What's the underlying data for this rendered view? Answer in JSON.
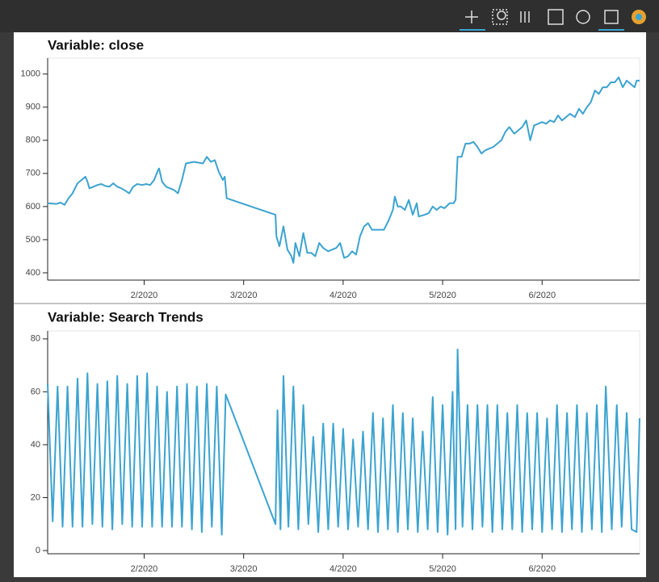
{
  "chart_data": [
    {
      "type": "line",
      "title": "Variable: close",
      "x": [
        1.03,
        1.12,
        1.16,
        1.2,
        1.24,
        1.28,
        1.33,
        1.37,
        1.41,
        1.43,
        1.45,
        1.49,
        1.53,
        1.57,
        1.61,
        1.65,
        1.69,
        1.73,
        1.77,
        1.81,
        1.85,
        1.89,
        1.93,
        1.98,
        2.02,
        2.06,
        2.1,
        2.14,
        2.15,
        2.18,
        2.22,
        2.26,
        2.3,
        2.34,
        2.36,
        2.38,
        2.42,
        2.5,
        2.59,
        2.63,
        2.67,
        2.71,
        2.75,
        2.79,
        2.81,
        2.83,
        3.32,
        3.33,
        3.36,
        3.4,
        3.44,
        3.48,
        3.5,
        3.52,
        3.56,
        3.6,
        3.64,
        3.68,
        3.72,
        3.76,
        3.8,
        3.85,
        3.89,
        3.93,
        3.97,
        4.01,
        4.05,
        4.09,
        4.13,
        4.17,
        4.21,
        4.25,
        4.29,
        4.33,
        4.37,
        4.41,
        4.46,
        4.5,
        4.52,
        4.55,
        4.58,
        4.62,
        4.66,
        4.7,
        4.74,
        4.76,
        4.82,
        4.86,
        4.9,
        4.94,
        4.98,
        5.02,
        5.07,
        5.11,
        5.13,
        5.15,
        5.19,
        5.23,
        5.27,
        5.31,
        5.35,
        5.39,
        5.43,
        5.47,
        5.51,
        5.55,
        5.59,
        5.63,
        5.67,
        5.72,
        5.76,
        5.8,
        5.84,
        5.88,
        5.92,
        5.96,
        6.0,
        6.04,
        6.08,
        6.12,
        6.16,
        6.2,
        6.24,
        6.28,
        6.33,
        6.37,
        6.41,
        6.45,
        6.49,
        6.53,
        6.57,
        6.61,
        6.65,
        6.69,
        6.73,
        6.77,
        6.81,
        6.85,
        6.89,
        6.93,
        6.95,
        6.98
      ],
      "series": [
        {
          "color": "#3ba3d0",
          "values": [
            610,
            608,
            612,
            605,
            625,
            640,
            670,
            680,
            690,
            675,
            655,
            660,
            665,
            668,
            662,
            660,
            670,
            660,
            655,
            648,
            640,
            660,
            668,
            665,
            668,
            665,
            680,
            710,
            715,
            675,
            660,
            655,
            650,
            640,
            660,
            680,
            730,
            735,
            730,
            750,
            735,
            740,
            705,
            680,
            690,
            625,
            575,
            510,
            480,
            540,
            470,
            450,
            430,
            490,
            450,
            520,
            460,
            460,
            450,
            490,
            475,
            465,
            470,
            475,
            490,
            445,
            450,
            465,
            455,
            510,
            540,
            550,
            530,
            530,
            530,
            530,
            560,
            590,
            630,
            600,
            600,
            590,
            620,
            575,
            610,
            570,
            575,
            580,
            600,
            590,
            600,
            595,
            610,
            610,
            620,
            750,
            750,
            790,
            790,
            795,
            780,
            760,
            770,
            775,
            780,
            790,
            800,
            825,
            840,
            820,
            830,
            840,
            860,
            800,
            845,
            850,
            855,
            850,
            860,
            855,
            875,
            860,
            870,
            880,
            870,
            895,
            880,
            900,
            915,
            950,
            940,
            960,
            960,
            975,
            975,
            990,
            960,
            980,
            970,
            960,
            980,
            980
          ]
        }
      ],
      "xlim": [
        1.03,
        6.98
      ],
      "xticks": [
        {
          "value": 2,
          "label": "2/2020"
        },
        {
          "value": 3,
          "label": "3/2020"
        },
        {
          "value": 4,
          "label": "4/2020"
        },
        {
          "value": 5,
          "label": "5/2020"
        },
        {
          "value": 6,
          "label": "6/2020"
        }
      ],
      "ylim": [
        378,
        1048
      ],
      "yticks": [
        400,
        500,
        600,
        700,
        800,
        900,
        1000
      ],
      "grid": false
    },
    {
      "type": "line",
      "title": "Variable: Search Trends",
      "x": [
        1.03,
        1.08,
        1.13,
        1.18,
        1.23,
        1.28,
        1.33,
        1.38,
        1.43,
        1.48,
        1.53,
        1.58,
        1.63,
        1.68,
        1.73,
        1.78,
        1.83,
        1.88,
        1.93,
        1.98,
        2.03,
        2.08,
        2.13,
        2.18,
        2.23,
        2.28,
        2.33,
        2.38,
        2.43,
        2.48,
        2.53,
        2.58,
        2.63,
        2.68,
        2.73,
        2.78,
        2.82,
        3.32,
        3.34,
        3.37,
        3.4,
        3.45,
        3.5,
        3.55,
        3.6,
        3.65,
        3.7,
        3.75,
        3.8,
        3.85,
        3.9,
        3.95,
        4.0,
        4.05,
        4.1,
        4.15,
        4.2,
        4.25,
        4.3,
        4.35,
        4.4,
        4.45,
        4.5,
        4.55,
        4.6,
        4.65,
        4.7,
        4.75,
        4.8,
        4.85,
        4.9,
        4.95,
        5.0,
        5.05,
        5.1,
        5.13,
        5.15,
        5.2,
        5.25,
        5.3,
        5.35,
        5.4,
        5.45,
        5.5,
        5.55,
        5.6,
        5.65,
        5.7,
        5.75,
        5.8,
        5.85,
        5.9,
        5.95,
        6.0,
        6.05,
        6.1,
        6.15,
        6.2,
        6.25,
        6.3,
        6.35,
        6.4,
        6.45,
        6.5,
        6.55,
        6.6,
        6.64,
        6.7,
        6.75,
        6.8,
        6.85,
        6.9,
        6.95,
        6.98
      ],
      "series": [
        {
          "color": "#3ba3d0",
          "values": [
            63,
            11,
            62,
            9,
            62,
            9,
            65,
            9,
            67,
            10,
            63,
            9,
            64,
            8,
            66,
            10,
            63,
            9,
            66,
            9,
            67,
            9,
            62,
            9,
            60,
            9,
            62,
            9,
            63,
            8,
            62,
            7,
            63,
            9,
            62,
            6,
            59,
            10,
            53,
            8,
            66,
            9,
            62,
            8,
            55,
            10,
            43,
            7,
            48,
            8,
            48,
            9,
            46,
            8,
            42,
            9,
            45,
            8,
            52,
            7,
            50,
            8,
            55,
            7,
            52,
            8,
            50,
            7,
            45,
            8,
            58,
            7,
            55,
            6,
            60,
            8,
            76,
            9,
            55,
            8,
            55,
            9,
            55,
            7,
            55,
            8,
            52,
            8,
            55,
            7,
            52,
            8,
            52,
            7,
            50,
            8,
            55,
            7,
            52,
            8,
            55,
            7,
            52,
            8,
            55,
            7,
            62,
            8,
            55,
            9,
            52,
            8,
            7,
            50
          ]
        }
      ],
      "xlim": [
        1.03,
        6.98
      ],
      "xticks": [
        {
          "value": 2,
          "label": "2/2020"
        },
        {
          "value": 3,
          "label": "3/2020"
        },
        {
          "value": 4,
          "label": "4/2020"
        },
        {
          "value": 5,
          "label": "5/2020"
        },
        {
          "value": 6,
          "label": "6/2020"
        }
      ],
      "ylim": [
        -1.2,
        83
      ],
      "yticks": [
        0,
        20,
        40,
        60,
        80
      ],
      "grid": false
    }
  ]
}
